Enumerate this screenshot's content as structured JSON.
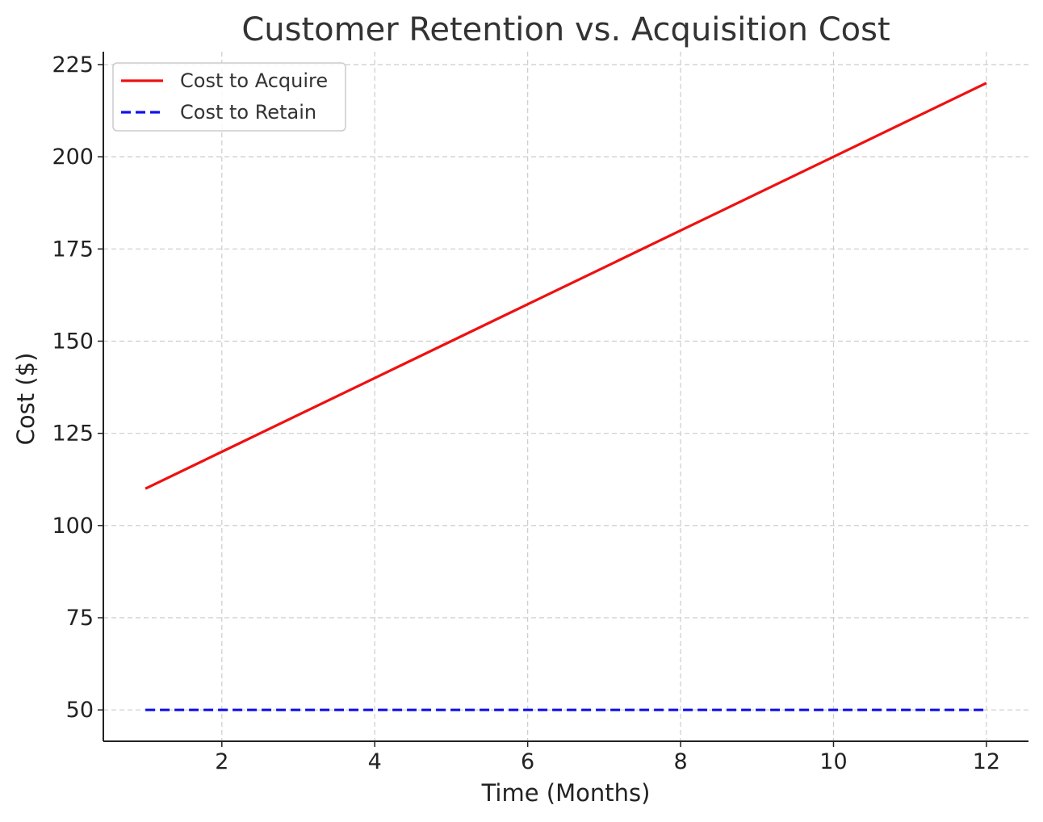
{
  "chart_data": {
    "type": "line",
    "title": "Customer Retention vs. Acquisition Cost",
    "xlabel": "Time (Months)",
    "ylabel": "Cost ($)",
    "x": [
      1,
      2,
      3,
      4,
      5,
      6,
      7,
      8,
      9,
      10,
      11,
      12
    ],
    "xlim": [
      0.45,
      12.55
    ],
    "ylim": [
      41.5,
      228.5
    ],
    "x_ticks": [
      2,
      4,
      6,
      8,
      10,
      12
    ],
    "y_ticks": [
      50,
      75,
      100,
      125,
      150,
      175,
      200,
      225
    ],
    "grid": true,
    "legend_position": "top-left",
    "series": [
      {
        "name": "Cost to Acquire",
        "values": [
          110,
          120,
          130,
          140,
          150,
          160,
          170,
          180,
          190,
          200,
          210,
          220
        ],
        "color": "#ee1111",
        "style": "solid"
      },
      {
        "name": "Cost to Retain",
        "values": [
          50,
          50,
          50,
          50,
          50,
          50,
          50,
          50,
          50,
          50,
          50,
          50
        ],
        "color": "#1111ee",
        "style": "dashed"
      }
    ]
  }
}
